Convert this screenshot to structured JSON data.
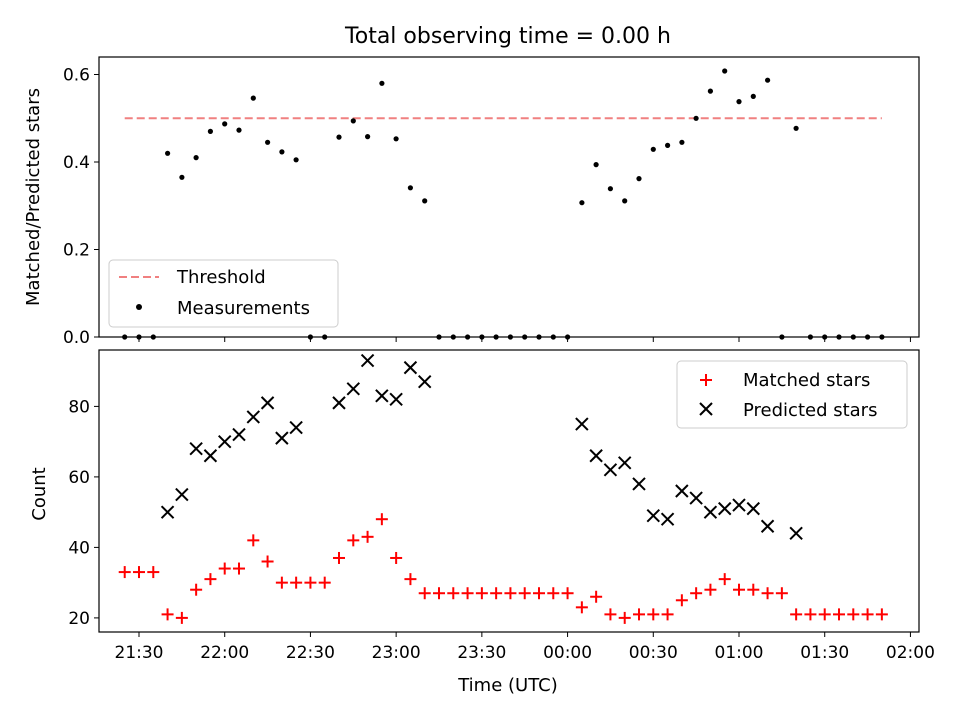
{
  "chart_data": [
    {
      "type": "scatter",
      "title": "Total observing time = 0.00 h",
      "ylabel": "Matched/Predicted stars",
      "ylim": [
        0,
        0.64
      ],
      "yticks": [
        0.0,
        0.2,
        0.4,
        0.6
      ],
      "ytick_labels": [
        "0.0",
        "0.2",
        "0.4",
        "0.6"
      ],
      "legend_position": "lower-left",
      "threshold": {
        "name": "Threshold",
        "value": 0.5,
        "x_range": [
          "21:25",
          "01:50"
        ],
        "color": "#f08080"
      },
      "series": [
        {
          "name": "Measurements",
          "color": "#000000",
          "points": [
            [
              "21:25",
              0
            ],
            [
              "21:30",
              0
            ],
            [
              "21:35",
              0
            ],
            [
              "21:40",
              0.42
            ],
            [
              "21:45",
              0.365
            ],
            [
              "21:50",
              0.41
            ],
            [
              "21:55",
              0.47
            ],
            [
              "22:00",
              0.487
            ],
            [
              "22:05",
              0.473
            ],
            [
              "22:10",
              0.546
            ],
            [
              "22:15",
              0.445
            ],
            [
              "22:20",
              0.423
            ],
            [
              "22:25",
              0.405
            ],
            [
              "22:30",
              0
            ],
            [
              "22:35",
              0
            ],
            [
              "22:40",
              0.457
            ],
            [
              "22:45",
              0.494
            ],
            [
              "22:50",
              0.458
            ],
            [
              "22:55",
              0.58
            ],
            [
              "23:00",
              0.453
            ],
            [
              "23:05",
              0.341
            ],
            [
              "23:10",
              0.311
            ],
            [
              "23:15",
              0
            ],
            [
              "23:20",
              0
            ],
            [
              "23:25",
              0
            ],
            [
              "23:30",
              0
            ],
            [
              "23:35",
              0
            ],
            [
              "23:40",
              0
            ],
            [
              "23:45",
              0
            ],
            [
              "23:50",
              0
            ],
            [
              "23:55",
              0
            ],
            [
              "00:00",
              0
            ],
            [
              "00:05",
              0.307
            ],
            [
              "00:10",
              0.394
            ],
            [
              "00:15",
              0.339
            ],
            [
              "00:20",
              0.311
            ],
            [
              "00:25",
              0.362
            ],
            [
              "00:30",
              0.429
            ],
            [
              "00:35",
              0.438
            ],
            [
              "00:40",
              0.445
            ],
            [
              "00:45",
              0.5
            ],
            [
              "00:50",
              0.562
            ],
            [
              "00:55",
              0.608
            ],
            [
              "01:00",
              0.538
            ],
            [
              "01:05",
              0.55
            ],
            [
              "01:10",
              0.587
            ],
            [
              "01:15",
              0
            ],
            [
              "01:20",
              0.477
            ],
            [
              "01:25",
              0
            ],
            [
              "01:30",
              0
            ],
            [
              "01:35",
              0
            ],
            [
              "01:40",
              0
            ],
            [
              "01:45",
              0
            ],
            [
              "01:50",
              0
            ]
          ]
        }
      ]
    },
    {
      "type": "scatter",
      "xlabel": "Time (UTC)",
      "ylabel": "Count",
      "ylim": [
        16,
        96
      ],
      "yticks": [
        20,
        40,
        60,
        80
      ],
      "ytick_labels": [
        "20",
        "40",
        "60",
        "80"
      ],
      "xlim": [
        "21:16",
        "02:03"
      ],
      "xticks": [
        "21:30",
        "22:00",
        "22:30",
        "23:00",
        "23:30",
        "00:00",
        "00:30",
        "01:00",
        "01:30",
        "02:00"
      ],
      "legend_position": "upper-right",
      "series": [
        {
          "name": "Matched stars",
          "marker": "+",
          "color": "#ff0000",
          "points": [
            [
              "21:25",
              33
            ],
            [
              "21:30",
              33
            ],
            [
              "21:35",
              33
            ],
            [
              "21:40",
              21
            ],
            [
              "21:45",
              20
            ],
            [
              "21:50",
              28
            ],
            [
              "21:55",
              31
            ],
            [
              "22:00",
              34
            ],
            [
              "22:05",
              34
            ],
            [
              "22:10",
              42
            ],
            [
              "22:15",
              36
            ],
            [
              "22:20",
              30
            ],
            [
              "22:25",
              30
            ],
            [
              "22:30",
              30
            ],
            [
              "22:35",
              30
            ],
            [
              "22:40",
              37
            ],
            [
              "22:45",
              42
            ],
            [
              "22:50",
              43
            ],
            [
              "22:55",
              48
            ],
            [
              "23:00",
              37
            ],
            [
              "23:05",
              31
            ],
            [
              "23:10",
              27
            ],
            [
              "23:15",
              27
            ],
            [
              "23:20",
              27
            ],
            [
              "23:25",
              27
            ],
            [
              "23:30",
              27
            ],
            [
              "23:35",
              27
            ],
            [
              "23:40",
              27
            ],
            [
              "23:45",
              27
            ],
            [
              "23:50",
              27
            ],
            [
              "23:55",
              27
            ],
            [
              "00:00",
              27
            ],
            [
              "00:05",
              23
            ],
            [
              "00:10",
              26
            ],
            [
              "00:15",
              21
            ],
            [
              "00:20",
              20
            ],
            [
              "00:25",
              21
            ],
            [
              "00:30",
              21
            ],
            [
              "00:35",
              21
            ],
            [
              "00:40",
              25
            ],
            [
              "00:45",
              27
            ],
            [
              "00:50",
              28
            ],
            [
              "00:55",
              31
            ],
            [
              "01:00",
              28
            ],
            [
              "01:05",
              28
            ],
            [
              "01:10",
              27
            ],
            [
              "01:15",
              27
            ],
            [
              "01:20",
              21
            ],
            [
              "01:25",
              21
            ],
            [
              "01:30",
              21
            ],
            [
              "01:35",
              21
            ],
            [
              "01:40",
              21
            ],
            [
              "01:45",
              21
            ],
            [
              "01:50",
              21
            ]
          ]
        },
        {
          "name": "Predicted stars",
          "marker": "x",
          "color": "#000000",
          "points": [
            [
              "21:40",
              50
            ],
            [
              "21:45",
              55
            ],
            [
              "21:50",
              68
            ],
            [
              "21:55",
              66
            ],
            [
              "22:00",
              70
            ],
            [
              "22:05",
              72
            ],
            [
              "22:10",
              77
            ],
            [
              "22:15",
              81
            ],
            [
              "22:20",
              71
            ],
            [
              "22:25",
              74
            ],
            [
              "22:40",
              81
            ],
            [
              "22:45",
              85
            ],
            [
              "22:50",
              93
            ],
            [
              "22:55",
              83
            ],
            [
              "23:00",
              82
            ],
            [
              "23:05",
              91
            ],
            [
              "23:10",
              87
            ],
            [
              "00:05",
              75
            ],
            [
              "00:10",
              66
            ],
            [
              "00:15",
              62
            ],
            [
              "00:20",
              64
            ],
            [
              "00:25",
              58
            ],
            [
              "00:30",
              49
            ],
            [
              "00:35",
              48
            ],
            [
              "00:40",
              56
            ],
            [
              "00:45",
              54
            ],
            [
              "00:50",
              50
            ],
            [
              "00:55",
              51
            ],
            [
              "01:00",
              52
            ],
            [
              "01:05",
              51
            ],
            [
              "01:10",
              46
            ],
            [
              "01:20",
              44
            ]
          ]
        }
      ]
    }
  ]
}
